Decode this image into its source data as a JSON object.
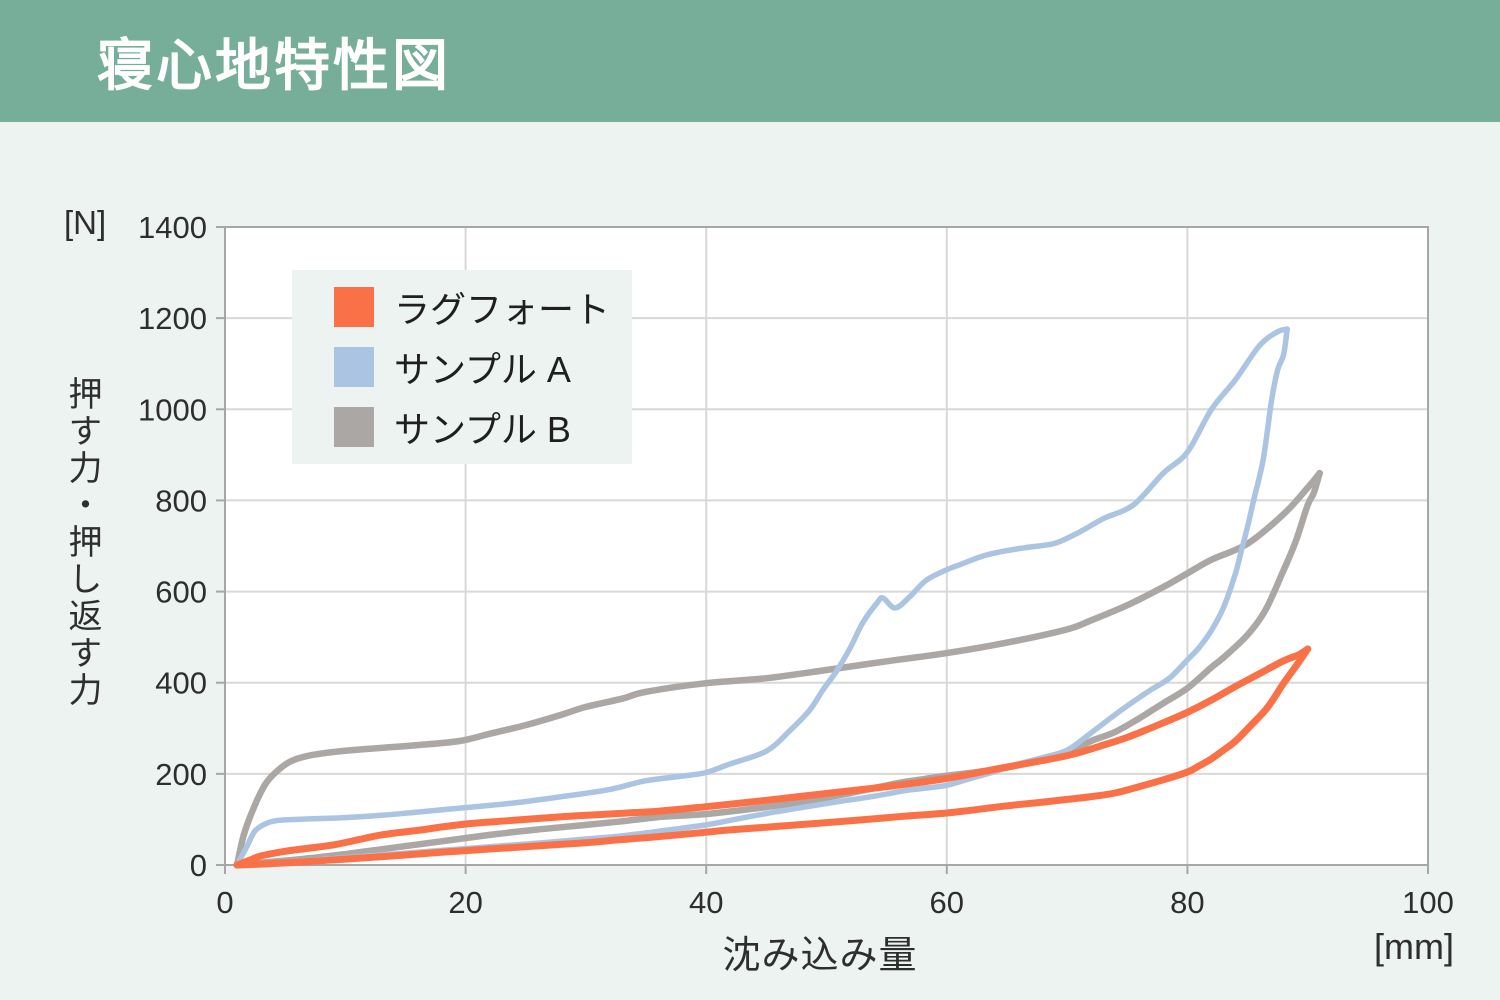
{
  "header": {
    "title": "寝心地特性図",
    "bg_color": "#76AE99",
    "text_color": "#FFFFFF"
  },
  "colors": {
    "page_bg": "#EDF3F0",
    "plot_bg": "#FFFFFF",
    "grid": "#D8D8D8",
    "axis": "#A6A6A6",
    "tick_text": "#2E2E2E",
    "legend_bg": "#EDF3F0"
  },
  "chart_data": {
    "type": "line",
    "title": "寝心地特性図",
    "xlabel": "沈み込み量",
    "x_unit": "[mm]",
    "ylabel": "押す力・押し返す力",
    "y_unit": "[N]",
    "xlim": [
      0,
      100
    ],
    "ylim": [
      0,
      1400
    ],
    "x_ticks": [
      0,
      20,
      40,
      60,
      80,
      100
    ],
    "y_ticks": [
      0,
      200,
      400,
      600,
      800,
      1000,
      1200,
      1400
    ],
    "grid": true,
    "legend_position": "inside-top-left",
    "series": [
      {
        "name": "ラグフォート",
        "color": "#FA7147",
        "stroke_width": 7,
        "loading": [
          [
            1,
            0
          ],
          [
            2,
            10
          ],
          [
            3,
            20
          ],
          [
            5,
            30
          ],
          [
            7,
            37
          ],
          [
            9,
            44
          ],
          [
            11,
            55
          ],
          [
            13,
            66
          ],
          [
            16,
            76
          ],
          [
            20,
            90
          ],
          [
            24,
            98
          ],
          [
            28,
            106
          ],
          [
            32,
            112
          ],
          [
            36,
            118
          ],
          [
            40,
            128
          ],
          [
            45,
            142
          ],
          [
            50,
            157
          ],
          [
            55,
            172
          ],
          [
            60,
            190
          ],
          [
            65,
            215
          ],
          [
            70,
            240
          ],
          [
            73,
            263
          ],
          [
            75,
            280
          ],
          [
            78,
            312
          ],
          [
            80,
            335
          ],
          [
            82,
            362
          ],
          [
            84,
            392
          ],
          [
            86,
            420
          ],
          [
            88,
            448
          ],
          [
            89.3,
            462
          ],
          [
            90,
            474
          ]
        ],
        "unloading": [
          [
            1,
            0
          ],
          [
            3,
            2
          ],
          [
            6,
            6
          ],
          [
            10,
            13
          ],
          [
            14,
            20
          ],
          [
            18,
            28
          ],
          [
            22,
            35
          ],
          [
            26,
            42
          ],
          [
            30,
            49
          ],
          [
            33,
            56
          ],
          [
            36,
            62
          ],
          [
            40,
            72
          ],
          [
            42,
            77
          ],
          [
            45,
            83
          ],
          [
            47,
            87
          ],
          [
            50,
            93
          ],
          [
            52,
            97
          ],
          [
            56,
            106
          ],
          [
            58,
            110
          ],
          [
            60,
            114
          ],
          [
            62,
            120
          ],
          [
            65,
            130
          ],
          [
            68,
            138
          ],
          [
            70,
            144
          ],
          [
            72,
            150
          ],
          [
            74,
            158
          ],
          [
            76,
            172
          ],
          [
            78,
            187
          ],
          [
            80,
            204
          ],
          [
            81,
            218
          ],
          [
            82,
            233
          ],
          [
            83,
            252
          ],
          [
            84,
            272
          ],
          [
            85.3,
            307
          ],
          [
            86.7,
            347
          ],
          [
            88,
            399
          ],
          [
            89.2,
            443
          ],
          [
            90,
            474
          ]
        ]
      },
      {
        "name": "サンプル A",
        "color": "#ABC4E2",
        "stroke_width": 5.5,
        "loading": [
          [
            1,
            0
          ],
          [
            1.8,
            40
          ],
          [
            2.5,
            75
          ],
          [
            3.5,
            92
          ],
          [
            4.5,
            98
          ],
          [
            6,
            100
          ],
          [
            8,
            102
          ],
          [
            10,
            104
          ],
          [
            13,
            109
          ],
          [
            16,
            116
          ],
          [
            20,
            126
          ],
          [
            24,
            136
          ],
          [
            28,
            150
          ],
          [
            32,
            166
          ],
          [
            35,
            185
          ],
          [
            38,
            195
          ],
          [
            40,
            203
          ],
          [
            42,
            222
          ],
          [
            45,
            250
          ],
          [
            47,
            296
          ],
          [
            48.6,
            340
          ],
          [
            49.7,
            384
          ],
          [
            50.9,
            428
          ],
          [
            52,
            478
          ],
          [
            53,
            531
          ],
          [
            54.2,
            575
          ],
          [
            54.7,
            586
          ],
          [
            55.7,
            564
          ],
          [
            56.9,
            588
          ],
          [
            58.3,
            625
          ],
          [
            60,
            648
          ],
          [
            61,
            658
          ],
          [
            63,
            678
          ],
          [
            65,
            690
          ],
          [
            67,
            698
          ],
          [
            69,
            706
          ],
          [
            71,
            730
          ],
          [
            73,
            760
          ],
          [
            75.5,
            790
          ],
          [
            78,
            860
          ],
          [
            80,
            906
          ],
          [
            82,
            1000
          ],
          [
            84,
            1065
          ],
          [
            86,
            1140
          ],
          [
            87.5,
            1170
          ],
          [
            88.3,
            1176
          ]
        ],
        "unloading": [
          [
            1,
            0
          ],
          [
            2,
            1
          ],
          [
            6,
            8
          ],
          [
            10,
            16
          ],
          [
            14,
            24
          ],
          [
            18,
            32
          ],
          [
            22,
            40
          ],
          [
            26,
            48
          ],
          [
            30,
            57
          ],
          [
            33,
            64
          ],
          [
            36,
            74
          ],
          [
            40,
            88
          ],
          [
            42,
            98
          ],
          [
            45,
            113
          ],
          [
            47,
            122
          ],
          [
            50,
            135
          ],
          [
            52,
            143
          ],
          [
            54,
            151
          ],
          [
            56.5,
            163
          ],
          [
            58,
            168
          ],
          [
            60,
            175
          ],
          [
            62,
            190
          ],
          [
            64,
            205
          ],
          [
            66,
            222
          ],
          [
            68,
            236
          ],
          [
            70,
            252
          ],
          [
            72,
            290
          ],
          [
            74,
            330
          ],
          [
            75.7,
            362
          ],
          [
            77,
            385
          ],
          [
            78.5,
            410
          ],
          [
            80,
            450
          ],
          [
            81,
            478
          ],
          [
            82,
            515
          ],
          [
            83,
            565
          ],
          [
            84,
            640
          ],
          [
            84.5,
            691
          ],
          [
            85,
            742
          ],
          [
            85.5,
            800
          ],
          [
            86.3,
            890
          ],
          [
            87,
            1020
          ],
          [
            87.5,
            1086
          ],
          [
            88,
            1120
          ],
          [
            88.3,
            1176
          ]
        ]
      },
      {
        "name": "サンプル B",
        "color": "#ABA7A4",
        "stroke_width": 6.5,
        "loading": [
          [
            1,
            0
          ],
          [
            1.5,
            60
          ],
          [
            2,
            100
          ],
          [
            2.8,
            150
          ],
          [
            3.5,
            183
          ],
          [
            4.5,
            210
          ],
          [
            5.5,
            228
          ],
          [
            7,
            240
          ],
          [
            9,
            248
          ],
          [
            11,
            253
          ],
          [
            13,
            257
          ],
          [
            16,
            263
          ],
          [
            19.5,
            272
          ],
          [
            22,
            288
          ],
          [
            25,
            307
          ],
          [
            28,
            330
          ],
          [
            30,
            347
          ],
          [
            33,
            365
          ],
          [
            35,
            380
          ],
          [
            40,
            399
          ],
          [
            45,
            410
          ],
          [
            50,
            428
          ],
          [
            55,
            447
          ],
          [
            60,
            465
          ],
          [
            65,
            488
          ],
          [
            70,
            517
          ],
          [
            72,
            537
          ],
          [
            75,
            570
          ],
          [
            78,
            610
          ],
          [
            80,
            640
          ],
          [
            82,
            670
          ],
          [
            85,
            705
          ],
          [
            88,
            770
          ],
          [
            90,
            828
          ],
          [
            91,
            860
          ]
        ],
        "unloading": [
          [
            1.5,
            0
          ],
          [
            3,
            5
          ],
          [
            6,
            12
          ],
          [
            10,
            24
          ],
          [
            14,
            38
          ],
          [
            18,
            52
          ],
          [
            22,
            66
          ],
          [
            26,
            78
          ],
          [
            30,
            88
          ],
          [
            33,
            96
          ],
          [
            36,
            105
          ],
          [
            40,
            112
          ],
          [
            44,
            124
          ],
          [
            48,
            138
          ],
          [
            52,
            158
          ],
          [
            56,
            180
          ],
          [
            58,
            188
          ],
          [
            60,
            196
          ],
          [
            62,
            202
          ],
          [
            65,
            214
          ],
          [
            68,
            232
          ],
          [
            70,
            246
          ],
          [
            72,
            272
          ],
          [
            74,
            292
          ],
          [
            76,
            322
          ],
          [
            78,
            355
          ],
          [
            80,
            388
          ],
          [
            82,
            434
          ],
          [
            83,
            455
          ],
          [
            85,
            505
          ],
          [
            86.5,
            560
          ],
          [
            88,
            647
          ],
          [
            89,
            710
          ],
          [
            90,
            790
          ],
          [
            90.5,
            816
          ],
          [
            91,
            860
          ]
        ]
      }
    ]
  }
}
